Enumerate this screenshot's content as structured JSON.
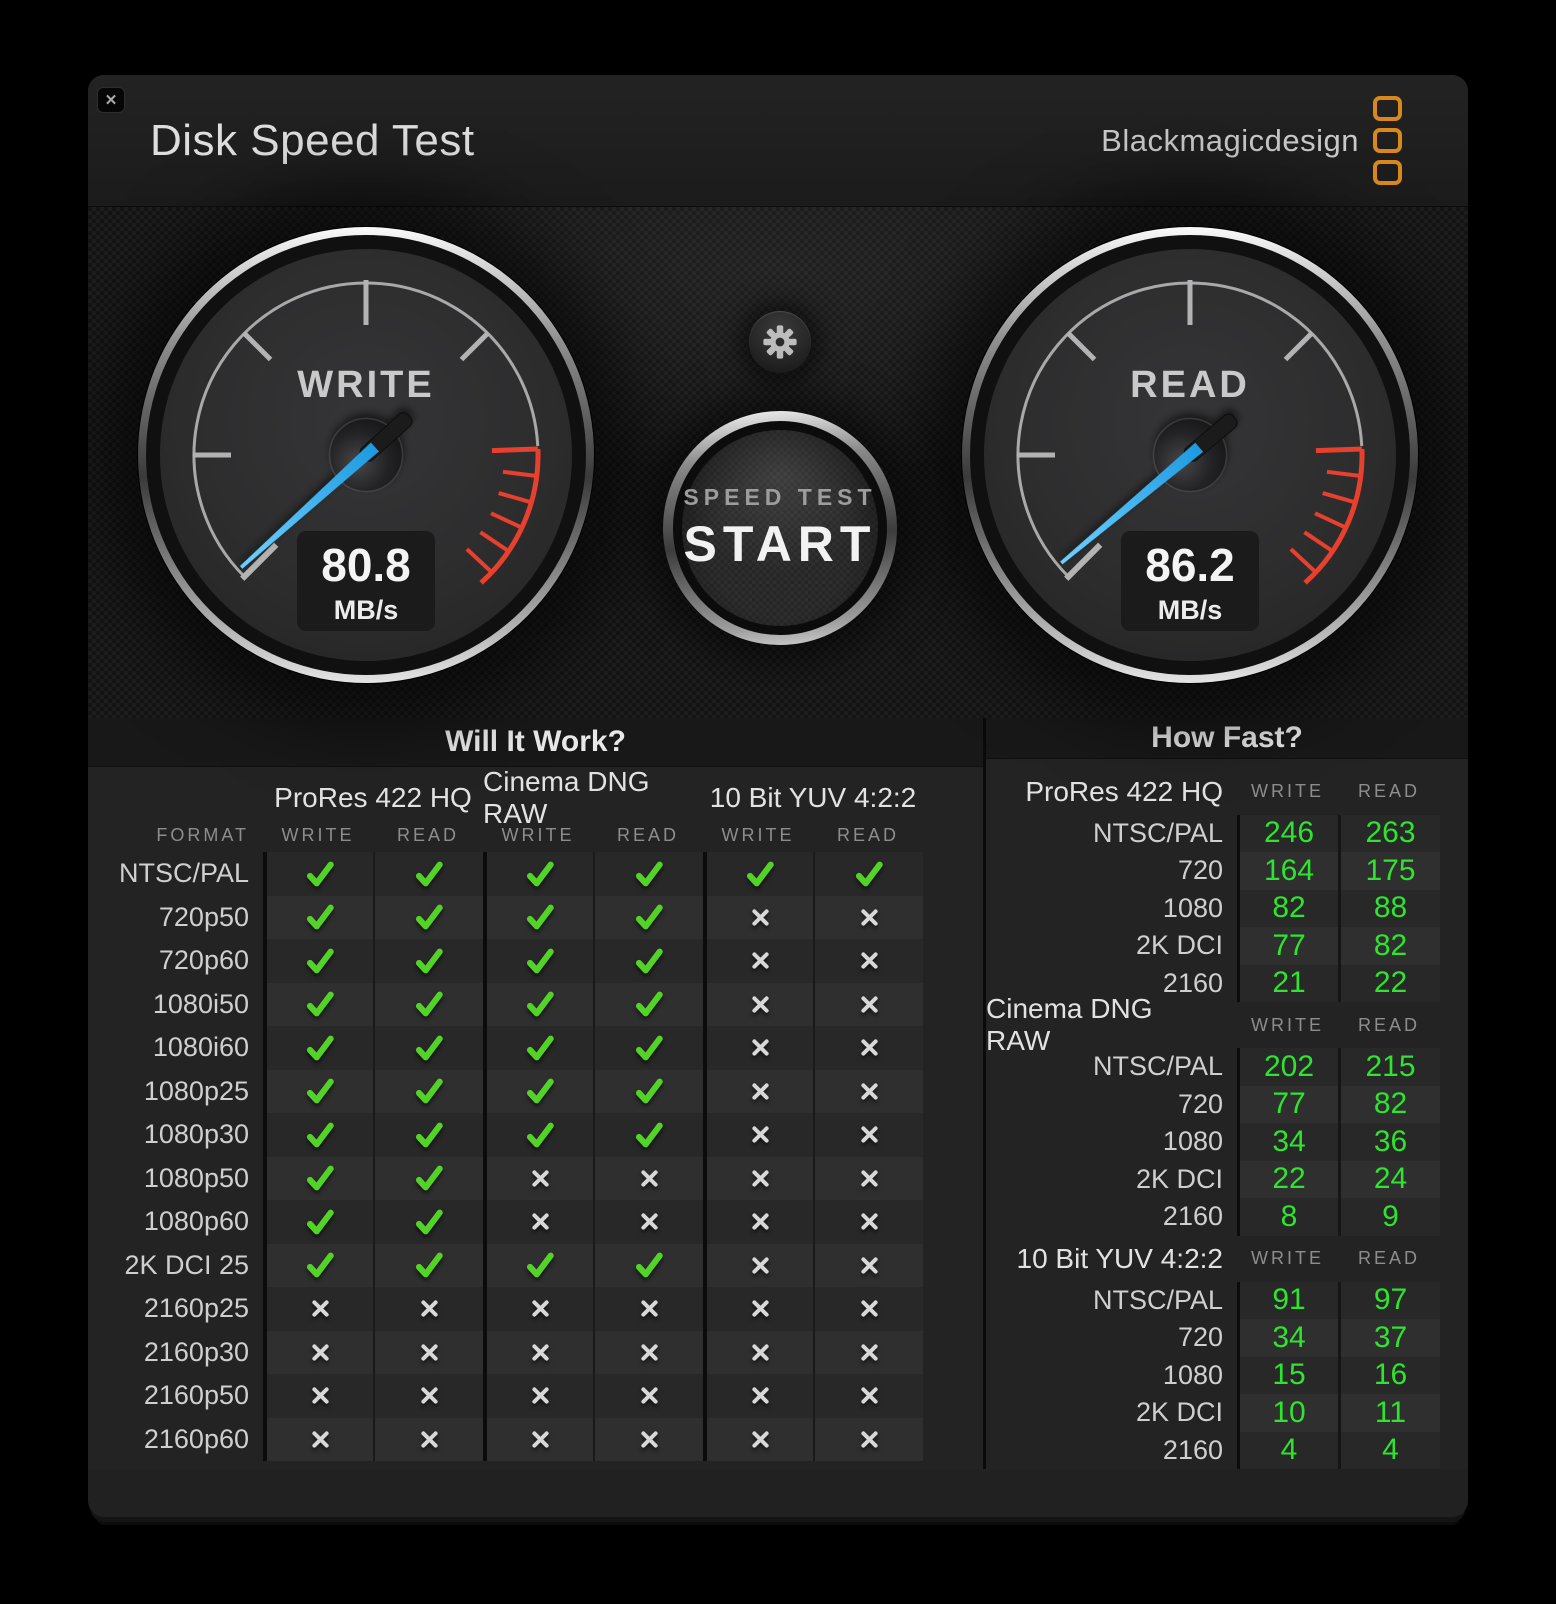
{
  "window": {
    "title": "Disk Speed Test",
    "close_glyph": "✕"
  },
  "brand": {
    "logo_text": "Blackmagicdesign",
    "accent_orange": "#d9891c"
  },
  "colors": {
    "needle_blue": "#2eb6f5",
    "redline_red": "#e8402e",
    "check_green": "#53d327",
    "value_green": "#2ee42e"
  },
  "gauges": {
    "write": {
      "label": "WRITE",
      "value": "80.8",
      "unit": "MB/s"
    },
    "read": {
      "label": "READ",
      "value": "86.2",
      "unit": "MB/s"
    }
  },
  "controls": {
    "speed_test_label": "SPEED TEST",
    "start_label": "START"
  },
  "will_it_work": {
    "title": "Will It Work?",
    "format_header": "FORMAT",
    "groups": [
      {
        "label": "ProRes 422 HQ"
      },
      {
        "label": "Cinema DNG RAW"
      },
      {
        "label": "10 Bit YUV 4:2:2"
      }
    ],
    "sub_headers": [
      "WRITE",
      "READ",
      "WRITE",
      "READ",
      "WRITE",
      "READ"
    ],
    "rows": [
      {
        "format": "NTSC/PAL",
        "results": [
          true,
          true,
          true,
          true,
          true,
          true
        ]
      },
      {
        "format": "720p50",
        "results": [
          true,
          true,
          true,
          true,
          false,
          false
        ]
      },
      {
        "format": "720p60",
        "results": [
          true,
          true,
          true,
          true,
          false,
          false
        ]
      },
      {
        "format": "1080i50",
        "results": [
          true,
          true,
          true,
          true,
          false,
          false
        ]
      },
      {
        "format": "1080i60",
        "results": [
          true,
          true,
          true,
          true,
          false,
          false
        ]
      },
      {
        "format": "1080p25",
        "results": [
          true,
          true,
          true,
          true,
          false,
          false
        ]
      },
      {
        "format": "1080p30",
        "results": [
          true,
          true,
          true,
          true,
          false,
          false
        ]
      },
      {
        "format": "1080p50",
        "results": [
          true,
          true,
          false,
          false,
          false,
          false
        ]
      },
      {
        "format": "1080p60",
        "results": [
          true,
          true,
          false,
          false,
          false,
          false
        ]
      },
      {
        "format": "2K DCI 25",
        "results": [
          true,
          true,
          true,
          true,
          false,
          false
        ]
      },
      {
        "format": "2160p25",
        "results": [
          false,
          false,
          false,
          false,
          false,
          false
        ]
      },
      {
        "format": "2160p30",
        "results": [
          false,
          false,
          false,
          false,
          false,
          false
        ]
      },
      {
        "format": "2160p50",
        "results": [
          false,
          false,
          false,
          false,
          false,
          false
        ]
      },
      {
        "format": "2160p60",
        "results": [
          false,
          false,
          false,
          false,
          false,
          false
        ]
      }
    ]
  },
  "how_fast": {
    "title": "How Fast?",
    "write_header": "WRITE",
    "read_header": "READ",
    "groups": [
      {
        "label": "ProRes 422 HQ",
        "rows": [
          {
            "format": "NTSC/PAL",
            "write": "246",
            "read": "263"
          },
          {
            "format": "720",
            "write": "164",
            "read": "175"
          },
          {
            "format": "1080",
            "write": "82",
            "read": "88"
          },
          {
            "format": "2K DCI",
            "write": "77",
            "read": "82"
          },
          {
            "format": "2160",
            "write": "21",
            "read": "22"
          }
        ]
      },
      {
        "label": "Cinema DNG RAW",
        "rows": [
          {
            "format": "NTSC/PAL",
            "write": "202",
            "read": "215"
          },
          {
            "format": "720",
            "write": "77",
            "read": "82"
          },
          {
            "format": "1080",
            "write": "34",
            "read": "36"
          },
          {
            "format": "2K DCI",
            "write": "22",
            "read": "24"
          },
          {
            "format": "2160",
            "write": "8",
            "read": "9"
          }
        ]
      },
      {
        "label": "10 Bit YUV 4:2:2",
        "rows": [
          {
            "format": "NTSC/PAL",
            "write": "91",
            "read": "97"
          },
          {
            "format": "720",
            "write": "34",
            "read": "37"
          },
          {
            "format": "1080",
            "write": "15",
            "read": "16"
          },
          {
            "format": "2K DCI",
            "write": "10",
            "read": "11"
          },
          {
            "format": "2160",
            "write": "4",
            "read": "4"
          }
        ]
      }
    ]
  }
}
